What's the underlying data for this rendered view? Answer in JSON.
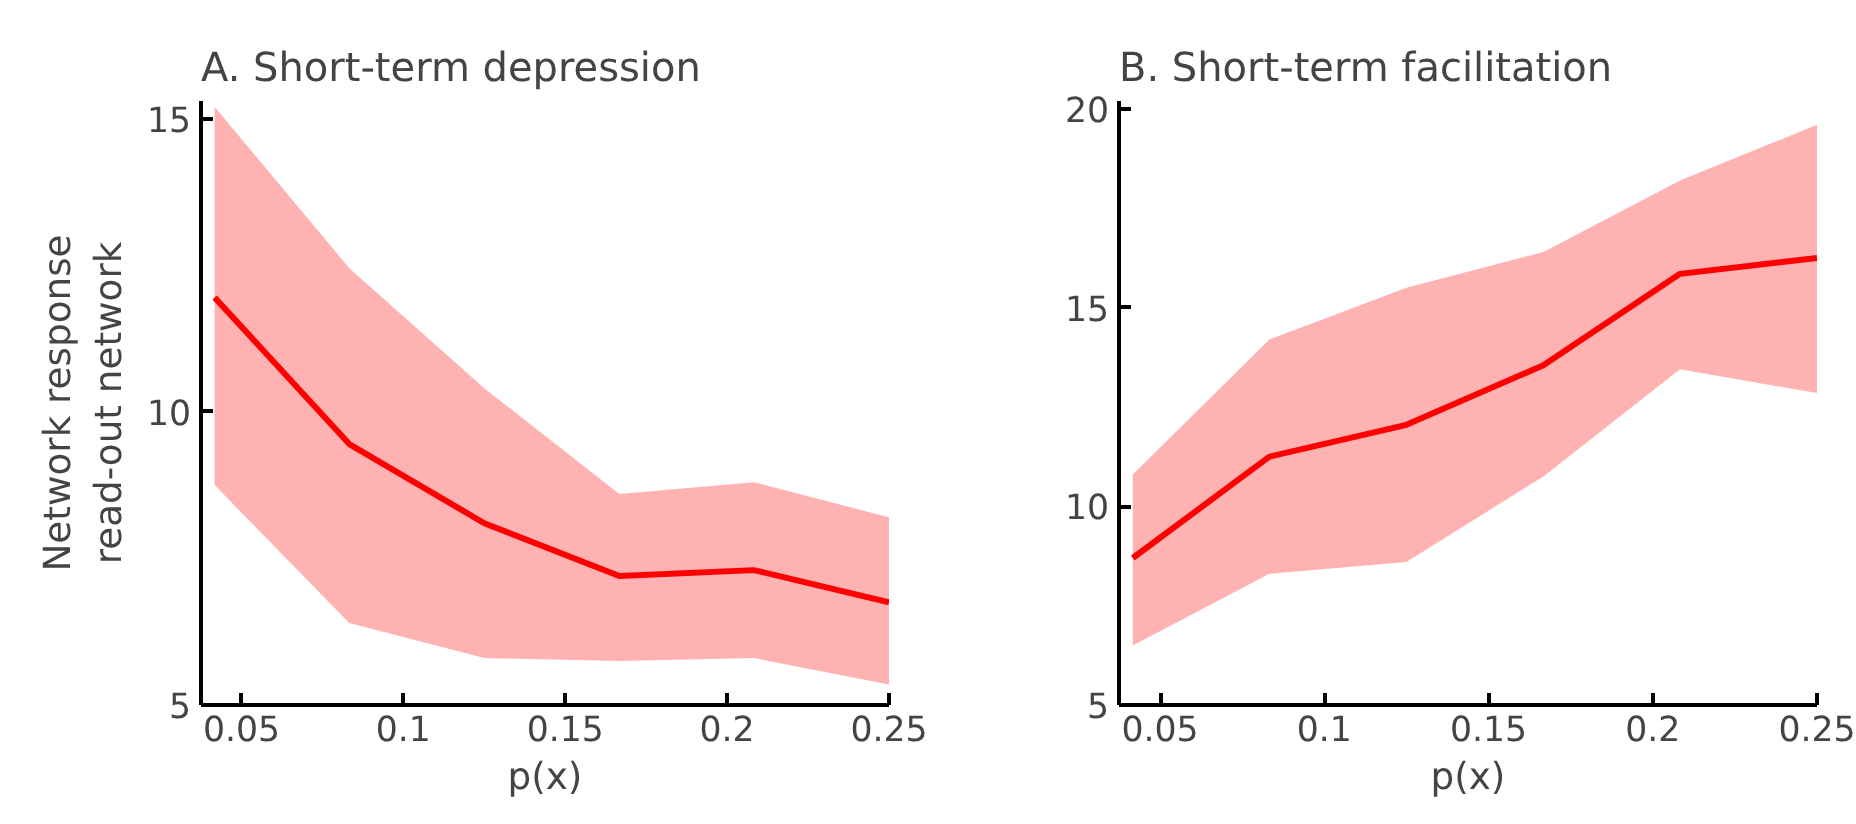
{
  "chart_data": [
    {
      "type": "line",
      "title": "A. Short-term depression",
      "xlabel": "p(x)",
      "ylabel": "Network response\nread-out network",
      "x": [
        0.0417,
        0.0833,
        0.125,
        0.1667,
        0.2083,
        0.25
      ],
      "xlim": [
        0.0375,
        0.25
      ],
      "ylim": [
        5,
        15.3
      ],
      "xticks": [
        0.05,
        0.1,
        0.15,
        0.2,
        0.25
      ],
      "yticks": [
        5,
        10,
        15
      ],
      "grid": false,
      "series": [
        {
          "color": "#ff0000",
          "values": [
            11.95,
            9.45,
            8.1,
            7.2,
            7.3,
            6.75
          ],
          "lower": [
            8.75,
            6.4,
            5.8,
            5.75,
            5.8,
            5.35
          ],
          "upper": [
            15.2,
            12.45,
            10.4,
            8.6,
            8.8,
            8.2
          ]
        }
      ]
    },
    {
      "type": "line",
      "title": "B. Short-term facilitation",
      "xlabel": "p(x)",
      "x": [
        0.0417,
        0.0833,
        0.125,
        0.1667,
        0.2083,
        0.25
      ],
      "xlim": [
        0.0375,
        0.25
      ],
      "ylim": [
        5,
        20.2
      ],
      "xticks": [
        0.05,
        0.1,
        0.15,
        0.2,
        0.25
      ],
      "yticks": [
        5,
        10,
        15,
        20
      ],
      "grid": false,
      "series": [
        {
          "color": "#ff0000",
          "values": [
            8.7,
            11.25,
            12.05,
            13.55,
            15.85,
            16.25
          ],
          "lower": [
            6.5,
            8.3,
            8.6,
            10.75,
            13.45,
            12.85
          ],
          "upper": [
            10.8,
            14.2,
            15.5,
            16.4,
            18.2,
            19.6
          ]
        }
      ]
    }
  ]
}
